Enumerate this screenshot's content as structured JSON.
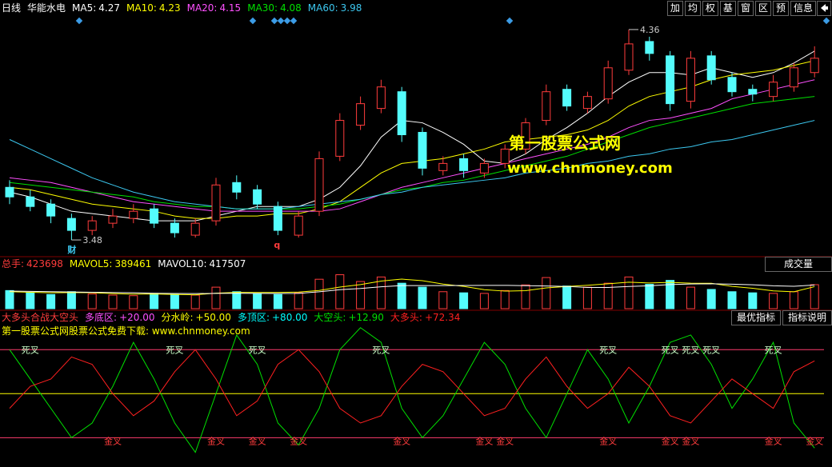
{
  "header": {
    "period": "日线",
    "stock": "华能水电",
    "buttons": [
      "加",
      "均",
      "权",
      "基",
      "窗",
      "区",
      "预",
      "信息"
    ]
  },
  "watermark": {
    "name": "第一股票公式网",
    "url": "www.chnmoney.com"
  },
  "chart_data": [
    {
      "type": "candlestick",
      "open": [
        3.7,
        3.66,
        3.63,
        3.57,
        3.52,
        3.55,
        3.57,
        3.61,
        3.55,
        3.5,
        3.56,
        3.72,
        3.69,
        3.62,
        3.5,
        3.6,
        3.83,
        3.96,
        4.03,
        4.1,
        3.93,
        3.77,
        3.82,
        3.76,
        3.8,
        3.86,
        3.98,
        4.11,
        4.03,
        4.07,
        4.19,
        4.31,
        4.25,
        4.06,
        4.25,
        4.16,
        4.11,
        4.08,
        4.12,
        4.18
      ],
      "high": [
        3.73,
        3.69,
        3.65,
        3.59,
        3.58,
        3.61,
        3.63,
        3.63,
        3.57,
        3.57,
        3.74,
        3.75,
        3.71,
        3.64,
        3.6,
        3.85,
        4.01,
        4.08,
        4.15,
        4.12,
        3.95,
        3.83,
        3.84,
        3.82,
        3.88,
        3.99,
        4.13,
        4.13,
        4.1,
        4.23,
        4.36,
        4.33,
        4.27,
        4.27,
        4.27,
        4.18,
        4.13,
        4.17,
        4.22,
        4.29
      ],
      "low": [
        3.63,
        3.6,
        3.55,
        3.48,
        3.5,
        3.53,
        3.55,
        3.53,
        3.49,
        3.49,
        3.54,
        3.65,
        3.61,
        3.5,
        3.49,
        3.58,
        3.81,
        3.94,
        4.01,
        3.89,
        3.75,
        3.75,
        3.74,
        3.74,
        3.78,
        3.84,
        3.96,
        4.02,
        4.01,
        4.05,
        4.17,
        4.23,
        4.02,
        4.03,
        4.13,
        4.08,
        4.06,
        4.06,
        4.1,
        4.16
      ],
      "close": [
        3.66,
        3.62,
        3.58,
        3.52,
        3.56,
        3.58,
        3.6,
        3.55,
        3.51,
        3.55,
        3.71,
        3.68,
        3.63,
        3.52,
        3.58,
        3.82,
        3.98,
        4.05,
        4.12,
        3.92,
        3.78,
        3.8,
        3.77,
        3.8,
        3.86,
        3.97,
        4.1,
        4.04,
        4.08,
        4.2,
        4.3,
        4.26,
        4.05,
        4.24,
        4.15,
        4.1,
        4.09,
        4.14,
        4.2,
        4.24
      ],
      "ylim": [
        3.42,
        4.41
      ],
      "up_color": "#ff3c3c",
      "down_color": "#54fcfc",
      "notes": [
        {
          "text": "财",
          "index": 3
        },
        {
          "text": "q",
          "index": 13
        }
      ],
      "series": [
        {
          "name": "MA5:",
          "color": "#ffffff",
          "values": [
            3.68,
            3.66,
            3.63,
            3.6,
            3.59,
            3.58,
            3.57,
            3.56,
            3.56,
            3.56,
            3.58,
            3.6,
            3.62,
            3.62,
            3.62,
            3.65,
            3.7,
            3.79,
            3.91,
            3.98,
            3.97,
            3.93,
            3.88,
            3.81,
            3.8,
            3.84,
            3.9,
            3.95,
            4.01,
            4.08,
            4.14,
            4.18,
            4.18,
            4.17,
            4.2,
            4.18,
            4.16,
            4.18,
            4.22,
            4.27
          ]
        },
        {
          "name": "MA10:",
          "color": "#ffff00",
          "values": [
            3.7,
            3.69,
            3.67,
            3.65,
            3.63,
            3.62,
            3.61,
            3.6,
            3.58,
            3.57,
            3.57,
            3.58,
            3.58,
            3.59,
            3.59,
            3.61,
            3.64,
            3.7,
            3.76,
            3.8,
            3.81,
            3.82,
            3.84,
            3.86,
            3.89,
            3.9,
            3.91,
            3.92,
            3.94,
            3.98,
            4.04,
            4.08,
            4.1,
            4.12,
            4.15,
            4.17,
            4.18,
            4.19,
            4.21,
            4.23
          ]
        },
        {
          "name": "MA20:",
          "color": "#ff50ff",
          "values": [
            3.74,
            3.73,
            3.72,
            3.7,
            3.68,
            3.66,
            3.64,
            3.63,
            3.62,
            3.61,
            3.6,
            3.6,
            3.6,
            3.6,
            3.6,
            3.6,
            3.61,
            3.64,
            3.67,
            3.7,
            3.72,
            3.74,
            3.76,
            3.78,
            3.8,
            3.82,
            3.84,
            3.86,
            3.88,
            3.91,
            3.95,
            3.98,
            3.99,
            4.01,
            4.03,
            4.07,
            4.09,
            4.11,
            4.13,
            4.15
          ]
        },
        {
          "name": "MA30:",
          "color": "#00e000",
          "values": [
            3.72,
            3.71,
            3.7,
            3.69,
            3.68,
            3.67,
            3.66,
            3.64,
            3.63,
            3.62,
            3.62,
            3.61,
            3.61,
            3.61,
            3.61,
            3.62,
            3.63,
            3.65,
            3.67,
            3.69,
            3.7,
            3.72,
            3.73,
            3.75,
            3.77,
            3.79,
            3.81,
            3.83,
            3.86,
            3.89,
            3.92,
            3.95,
            3.97,
            3.99,
            4.01,
            4.03,
            4.05,
            4.06,
            4.07,
            4.08
          ]
        },
        {
          "name": "MA60:",
          "color": "#3cc8f0",
          "values": [
            3.9,
            3.86,
            3.82,
            3.78,
            3.74,
            3.71,
            3.68,
            3.66,
            3.64,
            3.63,
            3.62,
            3.61,
            3.61,
            3.61,
            3.62,
            3.63,
            3.64,
            3.65,
            3.67,
            3.68,
            3.7,
            3.71,
            3.72,
            3.73,
            3.74,
            3.76,
            3.77,
            3.78,
            3.8,
            3.81,
            3.83,
            3.84,
            3.86,
            3.87,
            3.89,
            3.9,
            3.92,
            3.94,
            3.96,
            3.98
          ]
        }
      ]
    },
    {
      "type": "bar",
      "label": "总手:",
      "dropdown": "成交量",
      "ylim": [
        0,
        650000
      ],
      "values": [
        320000,
        280000,
        250000,
        300000,
        260000,
        240000,
        230000,
        270000,
        250000,
        240000,
        380000,
        300000,
        260000,
        250000,
        280000,
        520000,
        600000,
        480000,
        560000,
        450000,
        380000,
        300000,
        280000,
        270000,
        320000,
        420000,
        550000,
        400000,
        380000,
        450000,
        560000,
        430000,
        500000,
        380000,
        340000,
        300000,
        280000,
        270000,
        300000,
        423698
      ],
      "series": [
        {
          "name": "MAVOL5:",
          "color": "#ffff00",
          "values": [
            300000,
            290000,
            280000,
            285000,
            282000,
            266000,
            256000,
            260000,
            250000,
            246000,
            274000,
            288000,
            286000,
            286000,
            294000,
            322000,
            382000,
            426000,
            488000,
            522000,
            494000,
            434000,
            394000,
            336000,
            310000,
            318000,
            368000,
            392000,
            414000,
            440000,
            468000,
            454000,
            464000,
            450000,
            448000,
            394000,
            360000,
            314000,
            298000,
            389461
          ]
        },
        {
          "name": "MAVOL10:",
          "color": "#ffffff",
          "values": [
            310000,
            305000,
            300000,
            295000,
            290000,
            285000,
            280000,
            272000,
            268000,
            266000,
            270000,
            272000,
            271000,
            268000,
            270000,
            298000,
            335000,
            356000,
            387000,
            408000,
            408000,
            408000,
            410000,
            411000,
            412000,
            406000,
            401000,
            393000,
            375000,
            375000,
            392000,
            404000,
            426000,
            437000,
            439000,
            432000,
            423000,
            404000,
            396000,
            417507
          ]
        }
      ]
    },
    {
      "type": "line",
      "title": "大多头合战大空头",
      "subtitle": "第一股票公式网股票公式免费下载: www.chnmoney.com",
      "buttons": [
        "最优指标",
        "指标说明"
      ],
      "ylim": [
        0,
        97.6
      ],
      "yticks": [
        {
          "value": 20,
          "label": "+20.00"
        },
        {
          "value": 50,
          "label": "+50.00"
        },
        {
          "value": 80,
          "label": "+80.00"
        }
      ],
      "ytick_names": [
        "多底区:",
        "分水岭:",
        "多顶区:"
      ],
      "level_colors": [
        "#ff3c6e",
        "#ffff00",
        "#ff3c6e"
      ],
      "death_cross": {
        "label": "死叉",
        "at": [
          1,
          8,
          12,
          18,
          29,
          32,
          33,
          34,
          37
        ]
      },
      "golden_cross": {
        "label": "金叉",
        "at": [
          5,
          10,
          12,
          14,
          19,
          23,
          24,
          29,
          32,
          33,
          37,
          39
        ]
      },
      "series": [
        {
          "name": "大空头:",
          "color": "#00e000",
          "last_value_label": "+12.90",
          "values": [
            80,
            60,
            40,
            20,
            30,
            55,
            85,
            60,
            30,
            10,
            50,
            90,
            70,
            30,
            15,
            40,
            80,
            95,
            85,
            40,
            20,
            35,
            60,
            85,
            70,
            40,
            20,
            50,
            80,
            60,
            30,
            55,
            85,
            90,
            70,
            40,
            60,
            85,
            30,
            12.9
          ]
        },
        {
          "name": "大多头:",
          "color": "#ff2020",
          "last_value_label": "+72.34",
          "values": [
            40,
            55,
            60,
            75,
            70,
            50,
            35,
            45,
            65,
            80,
            60,
            35,
            45,
            70,
            80,
            65,
            40,
            30,
            35,
            55,
            70,
            65,
            50,
            35,
            40,
            60,
            75,
            55,
            40,
            50,
            68,
            55,
            35,
            30,
            45,
            60,
            50,
            40,
            65,
            72.34
          ]
        }
      ]
    }
  ]
}
